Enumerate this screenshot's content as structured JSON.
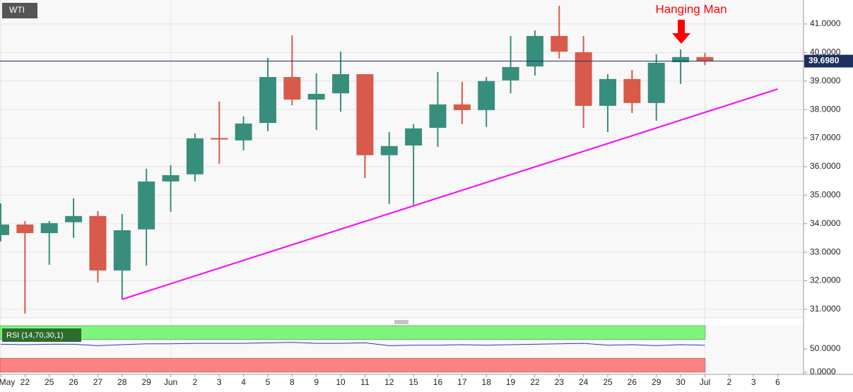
{
  "chart_data": [
    {
      "type": "candlestick",
      "title": "WTI",
      "categories": [
        "May",
        "22",
        "25",
        "26",
        "27",
        "28",
        "29",
        "Jun",
        "2",
        "3",
        "4",
        "5",
        "8",
        "9",
        "10",
        "11",
        "12",
        "15",
        "16",
        "17",
        "18",
        "19",
        "22",
        "23",
        "24",
        "25",
        "26",
        "29",
        "30",
        "Jul",
        "2",
        "3",
        "6"
      ],
      "open": [
        33.6,
        33.97,
        33.67,
        34.05,
        34.27,
        32.36,
        33.8,
        35.48,
        35.73,
        37.0,
        36.92,
        37.53,
        39.14,
        38.35,
        38.57,
        39.24,
        36.4,
        36.74,
        37.36,
        38.18,
        37.98,
        39.02,
        39.51,
        40.58,
        40.01,
        38.13,
        39.07,
        38.23,
        39.66,
        39.84,
        null,
        null,
        null
      ],
      "high": [
        34.71,
        34.09,
        34.09,
        34.89,
        34.44,
        34.34,
        35.93,
        36.05,
        37.16,
        38.28,
        37.76,
        39.81,
        40.6,
        39.27,
        40.03,
        39.24,
        37.21,
        37.49,
        39.32,
        38.97,
        39.14,
        40.58,
        40.78,
        41.64,
        40.58,
        39.24,
        39.39,
        39.94,
        40.11,
        39.99,
        null,
        null,
        null
      ],
      "low": [
        33.38,
        30.85,
        32.56,
        33.5,
        31.94,
        31.35,
        32.53,
        34.42,
        35.48,
        36.1,
        36.57,
        37.24,
        38.15,
        37.29,
        37.93,
        35.6,
        34.69,
        34.66,
        36.69,
        37.49,
        37.39,
        38.57,
        39.19,
        39.79,
        37.36,
        37.21,
        37.88,
        37.61,
        38.9,
        39.56,
        null,
        null,
        null
      ],
      "close": [
        33.97,
        33.67,
        34.02,
        34.27,
        32.36,
        33.77,
        35.48,
        35.7,
        36.99,
        36.95,
        37.51,
        39.14,
        38.35,
        38.55,
        39.24,
        36.4,
        36.72,
        37.34,
        38.18,
        37.98,
        39.0,
        39.49,
        40.58,
        40.03,
        38.13,
        39.07,
        38.23,
        39.64,
        39.84,
        39.71,
        null,
        null,
        null
      ],
      "up_color": "#388e7c",
      "down_color": "#d85a4a",
      "ylim": [
        30.7,
        41.84
      ],
      "yticks": [
        {
          "value": 31,
          "label": "31.0000"
        },
        {
          "value": 32,
          "label": "32.0000"
        },
        {
          "value": 33,
          "label": "33.0000"
        },
        {
          "value": 34,
          "label": "34.0000"
        },
        {
          "value": 35,
          "label": "35.0000"
        },
        {
          "value": 36,
          "label": "36.0000"
        },
        {
          "value": 37,
          "label": "37.0000"
        },
        {
          "value": 38,
          "label": "38.0000"
        },
        {
          "value": 39,
          "label": "39.0000"
        },
        {
          "value": 40,
          "label": "40.0000"
        },
        {
          "value": 41,
          "label": "41.0000"
        }
      ],
      "grid": true,
      "last_price": {
        "value": 39.698,
        "label": "39.6980",
        "color": "#1c2f5e"
      },
      "trendline": {
        "x": [
          5,
          32
        ],
        "y": [
          31.35,
          38.72
        ],
        "color": "#ff00ff"
      },
      "annotation": {
        "text": "Hanging Man",
        "color": "#ff0000"
      }
    },
    {
      "type": "line",
      "title": "RSI (14,70,30,1)",
      "color": "#1f3fb5",
      "values": [
        60,
        59,
        60,
        60,
        57,
        59,
        61,
        61,
        62,
        62,
        62,
        63,
        64,
        62,
        62,
        63,
        57,
        58,
        58,
        59,
        58,
        59,
        60,
        61,
        62,
        58,
        59,
        57,
        59,
        58
      ],
      "ylim": [
        -1.5,
        101.5
      ],
      "yticks": [
        {
          "value": 0,
          "label": "0.0000"
        },
        {
          "value": 50,
          "label": "50.0000"
        }
      ],
      "bands": [
        {
          "from": 70,
          "to": 100,
          "color": "#7cf57c"
        },
        {
          "from": 0,
          "to": 30,
          "color": "#ff8080"
        }
      ]
    }
  ]
}
